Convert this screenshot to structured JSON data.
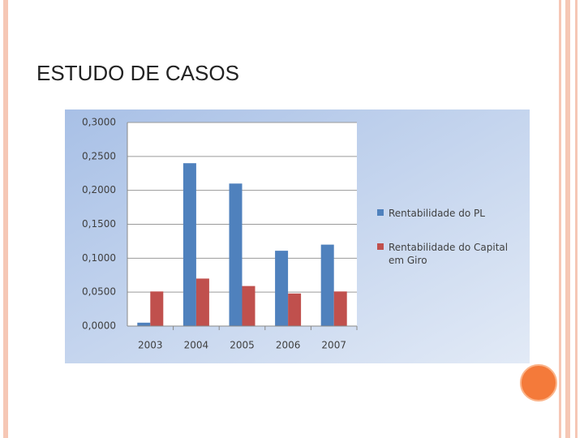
{
  "slide": {
    "title": "ESTUDO DE CASOS"
  },
  "chart_data": {
    "type": "bar",
    "categories": [
      "2003",
      "2004",
      "2005",
      "2006",
      "2007"
    ],
    "series": [
      {
        "name": "Rentabilidade do PL",
        "color": "#4f81bd",
        "values": [
          0.005,
          0.24,
          0.21,
          0.111,
          0.12
        ]
      },
      {
        "name": "Rentabilidade do Capital em Giro",
        "color": "#c0504d",
        "values": [
          0.051,
          0.07,
          0.059,
          0.048,
          0.051
        ]
      }
    ],
    "ylim": [
      0,
      0.3
    ],
    "yticks": [
      {
        "value": 0,
        "label": "0,0000"
      },
      {
        "value": 0.05,
        "label": "0,0500"
      },
      {
        "value": 0.1,
        "label": "0,1000"
      },
      {
        "value": 0.15,
        "label": "0,1500"
      },
      {
        "value": 0.2,
        "label": "0,2000"
      },
      {
        "value": 0.25,
        "label": "0,2500"
      },
      {
        "value": 0.3,
        "label": "0,3000"
      }
    ],
    "grid": true,
    "legend": "right"
  }
}
